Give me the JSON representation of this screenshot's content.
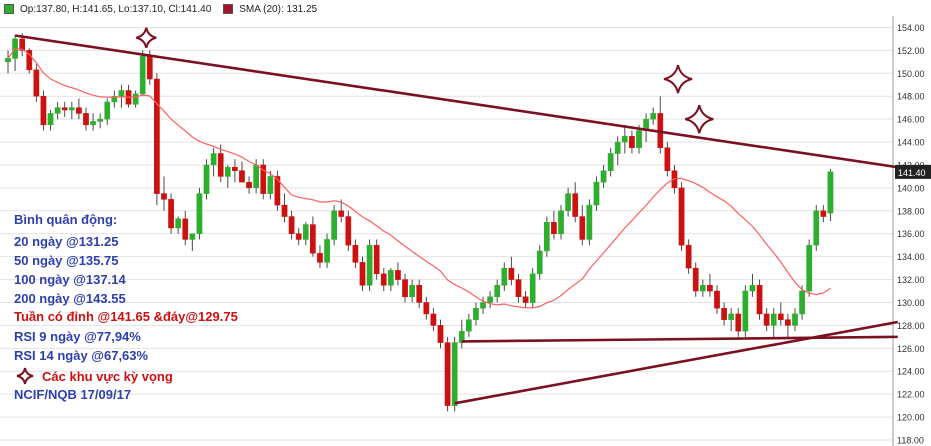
{
  "legend": {
    "ohlc": "Op:137.80, H:141.65, Lo:137.10, Cl:141.40",
    "sma": "SMA (20): 131.25",
    "up_color": "#2eae2e",
    "down_color": "#cc1111",
    "sma_color": "#ff5f5f"
  },
  "annotations": {
    "ma_title": "Bình quân động:",
    "ma20": "20 ngày   @131.25",
    "ma50": "50 ngày    @135.75",
    "ma100": "100 ngày  @137.14",
    "ma200": "200 ngày  @143.55",
    "week_range": "Tuần có đỉnh @141.65 &đáy@129.75",
    "rsi9": "RSI 9 ngày   @77,94%",
    "rsi14": "RSI 14 ngày @67,63%",
    "zones": "Các khu vực kỳ vọng",
    "source": "NCIF/NQB 17/09/17",
    "blue_color": "#2f3fae",
    "red_color": "#cc1111",
    "star_color": "#7a1020"
  },
  "chart_data": {
    "type": "candlestick",
    "title": "",
    "ylim": [
      118,
      155
    ],
    "yticks": [
      "118.00",
      "120.00",
      "122.00",
      "124.00",
      "126.00",
      "128.00",
      "130.00",
      "132.00",
      "134.00",
      "136.00",
      "138.00",
      "140.00",
      "142.00",
      "144.00",
      "146.00",
      "148.00",
      "150.00",
      "152.00",
      "154.00"
    ],
    "last_price_label": "141.40",
    "sma_period": 20,
    "trendline_color": "#7a1020",
    "candles": [
      [
        151.0,
        152.0,
        150.0,
        151.3
      ],
      [
        151.3,
        153.3,
        150.2,
        153.0
      ],
      [
        153.0,
        153.5,
        151.5,
        152.0
      ],
      [
        152.0,
        152.2,
        150.0,
        150.3
      ],
      [
        150.3,
        150.8,
        147.5,
        148.0
      ],
      [
        148.0,
        148.5,
        145.0,
        145.5
      ],
      [
        145.5,
        146.8,
        145.0,
        146.5
      ],
      [
        146.5,
        147.5,
        146.0,
        147.0
      ],
      [
        147.0,
        147.5,
        146.2,
        146.8
      ],
      [
        146.8,
        147.5,
        146.0,
        147.0
      ],
      [
        147.0,
        147.8,
        146.0,
        146.5
      ],
      [
        146.5,
        147.0,
        145.0,
        145.5
      ],
      [
        145.5,
        146.5,
        145.0,
        145.8
      ],
      [
        145.8,
        146.5,
        145.2,
        146.0
      ],
      [
        146.0,
        147.8,
        145.5,
        147.5
      ],
      [
        147.5,
        148.5,
        147.0,
        148.0
      ],
      [
        148.0,
        149.0,
        147.0,
        148.5
      ],
      [
        148.5,
        149.0,
        147.0,
        147.3
      ],
      [
        147.3,
        148.5,
        147.0,
        148.2
      ],
      [
        148.2,
        152.0,
        148.0,
        151.5
      ],
      [
        151.5,
        152.0,
        149.0,
        149.5
      ],
      [
        149.5,
        150.0,
        138.5,
        139.5
      ],
      [
        139.5,
        141.0,
        138.0,
        139.0
      ],
      [
        139.0,
        139.5,
        136.0,
        136.5
      ],
      [
        136.5,
        137.5,
        136.0,
        137.3
      ],
      [
        137.3,
        138.0,
        135.0,
        135.5
      ],
      [
        135.5,
        136.0,
        134.5,
        136.0
      ],
      [
        136.0,
        140.0,
        135.5,
        139.5
      ],
      [
        139.5,
        142.5,
        139.0,
        142.0
      ],
      [
        142.0,
        143.5,
        141.0,
        143.0
      ],
      [
        143.0,
        143.8,
        140.5,
        141.0
      ],
      [
        141.0,
        142.0,
        140.0,
        141.8
      ],
      [
        141.8,
        142.5,
        140.5,
        141.5
      ],
      [
        141.5,
        142.3,
        140.5,
        140.5
      ],
      [
        140.5,
        141.0,
        139.5,
        140.0
      ],
      [
        140.0,
        142.5,
        139.5,
        142.0
      ],
      [
        142.0,
        142.5,
        139.0,
        139.5
      ],
      [
        139.5,
        141.5,
        139.0,
        141.0
      ],
      [
        141.0,
        141.5,
        138.0,
        138.5
      ],
      [
        138.5,
        139.5,
        137.0,
        137.5
      ],
      [
        137.5,
        138.0,
        135.5,
        136.0
      ],
      [
        136.0,
        136.5,
        135.0,
        135.5
      ],
      [
        135.5,
        137.0,
        135.0,
        136.8
      ],
      [
        136.8,
        137.5,
        134.0,
        134.3
      ],
      [
        134.3,
        135.0,
        133.0,
        133.5
      ],
      [
        133.5,
        136.0,
        133.0,
        135.5
      ],
      [
        135.5,
        138.5,
        135.0,
        138.0
      ],
      [
        138.0,
        139.0,
        137.0,
        137.5
      ],
      [
        137.5,
        138.0,
        134.5,
        135.0
      ],
      [
        135.0,
        135.5,
        133.0,
        133.5
      ],
      [
        133.5,
        134.0,
        131.0,
        131.5
      ],
      [
        131.5,
        135.5,
        131.0,
        135.0
      ],
      [
        135.0,
        135.5,
        132.0,
        132.5
      ],
      [
        132.5,
        133.0,
        131.0,
        131.5
      ],
      [
        131.5,
        133.0,
        131.0,
        132.8
      ],
      [
        132.8,
        133.5,
        131.5,
        132.0
      ],
      [
        132.0,
        132.5,
        130.0,
        130.5
      ],
      [
        130.5,
        132.0,
        130.0,
        131.5
      ],
      [
        131.5,
        132.0,
        129.5,
        130.0
      ],
      [
        130.0,
        130.5,
        128.5,
        129.0
      ],
      [
        129.0,
        129.5,
        127.5,
        128.0
      ],
      [
        128.0,
        128.5,
        126.0,
        126.5
      ],
      [
        126.5,
        127.0,
        120.5,
        121.0
      ],
      [
        121.0,
        127.0,
        120.5,
        126.5
      ],
      [
        126.5,
        128.5,
        126.0,
        127.5
      ],
      [
        127.5,
        129.0,
        127.0,
        128.5
      ],
      [
        128.5,
        130.0,
        128.0,
        129.5
      ],
      [
        129.5,
        130.5,
        129.0,
        130.0
      ],
      [
        130.0,
        131.0,
        129.5,
        130.5
      ],
      [
        130.5,
        132.0,
        130.0,
        131.5
      ],
      [
        131.5,
        133.5,
        131.0,
        133.0
      ],
      [
        133.0,
        134.0,
        131.5,
        132.0
      ],
      [
        132.0,
        132.5,
        130.0,
        130.5
      ],
      [
        130.5,
        131.0,
        129.5,
        130.0
      ],
      [
        130.0,
        133.0,
        129.5,
        132.5
      ],
      [
        132.5,
        135.0,
        132.0,
        134.5
      ],
      [
        134.5,
        137.5,
        134.0,
        137.0
      ],
      [
        137.0,
        138.0,
        135.5,
        136.0
      ],
      [
        136.0,
        138.5,
        135.5,
        138.0
      ],
      [
        138.0,
        140.0,
        137.5,
        139.5
      ],
      [
        139.5,
        140.5,
        137.0,
        137.5
      ],
      [
        137.5,
        138.5,
        135.0,
        135.5
      ],
      [
        135.5,
        139.0,
        135.0,
        138.5
      ],
      [
        138.5,
        141.0,
        138.0,
        140.5
      ],
      [
        140.5,
        142.0,
        140.0,
        141.5
      ],
      [
        141.5,
        143.5,
        141.0,
        143.0
      ],
      [
        143.0,
        144.5,
        142.0,
        144.0
      ],
      [
        144.0,
        145.5,
        143.0,
        144.5
      ],
      [
        144.5,
        145.0,
        143.0,
        143.5
      ],
      [
        143.5,
        145.5,
        143.0,
        145.0
      ],
      [
        145.0,
        146.5,
        144.0,
        146.0
      ],
      [
        146.0,
        147.0,
        145.5,
        146.5
      ],
      [
        146.5,
        148.0,
        143.0,
        143.5
      ],
      [
        143.5,
        144.0,
        141.0,
        141.5
      ],
      [
        141.5,
        142.0,
        139.5,
        140.0
      ],
      [
        140.0,
        140.5,
        134.5,
        135.0
      ],
      [
        135.0,
        135.5,
        132.5,
        133.0
      ],
      [
        133.0,
        133.5,
        130.5,
        131.0
      ],
      [
        131.0,
        132.0,
        130.5,
        131.5
      ],
      [
        131.5,
        132.5,
        130.5,
        131.0
      ],
      [
        131.0,
        131.5,
        129.0,
        129.5
      ],
      [
        129.5,
        130.0,
        128.0,
        128.5
      ],
      [
        128.5,
        129.5,
        127.5,
        129.0
      ],
      [
        129.0,
        129.5,
        127.0,
        127.5
      ],
      [
        127.5,
        131.5,
        127.0,
        131.0
      ],
      [
        131.0,
        132.5,
        130.5,
        131.5
      ],
      [
        131.5,
        132.0,
        128.5,
        129.0
      ],
      [
        129.0,
        129.5,
        127.5,
        128.0
      ],
      [
        128.0,
        129.5,
        127.0,
        129.0
      ],
      [
        129.0,
        130.0,
        128.0,
        128.5
      ],
      [
        128.5,
        129.0,
        127.0,
        128.0
      ],
      [
        128.0,
        129.5,
        127.5,
        129.0
      ],
      [
        129.0,
        131.5,
        128.5,
        131.0
      ],
      [
        131.0,
        135.5,
        130.5,
        135.0
      ],
      [
        135.0,
        138.5,
        134.5,
        138.0
      ],
      [
        138.0,
        138.5,
        137.0,
        137.5
      ],
      [
        137.8,
        141.65,
        137.1,
        141.4
      ]
    ],
    "trendlines": [
      {
        "name": "upper-resistance",
        "from": [
          1,
          153.3
        ],
        "to": [
          125.5,
          141.8
        ]
      },
      {
        "name": "rising-support",
        "from": [
          63,
          121.2
        ],
        "to": [
          125.5,
          128.3
        ]
      },
      {
        "name": "horizontal-support",
        "from": [
          64,
          126.6
        ],
        "to": [
          125.5,
          127.0
        ]
      }
    ],
    "stars": [
      {
        "i": 19.5,
        "y": 153.1,
        "size": 10
      },
      {
        "i": 94.5,
        "y": 149.5,
        "size": 14
      },
      {
        "i": 97.5,
        "y": 146.0,
        "size": 14
      }
    ]
  }
}
